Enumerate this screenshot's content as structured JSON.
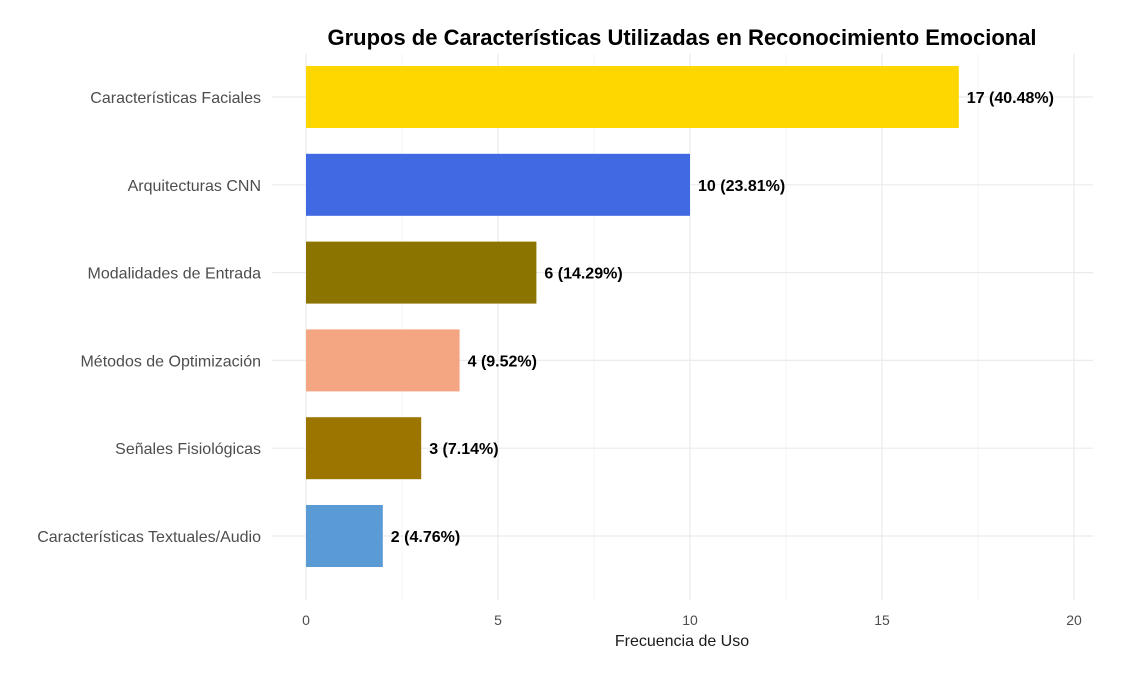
{
  "chart_data": {
    "type": "bar",
    "orientation": "horizontal",
    "title": "Grupos de Características Utilizadas en Reconocimiento Emocional",
    "xlabel": "Frecuencia de Uso",
    "ylabel": "",
    "xlim": [
      0,
      20
    ],
    "x_ticks": [
      0,
      5,
      10,
      15,
      20
    ],
    "grid": true,
    "categories": [
      "Características Faciales",
      "Arquitecturas CNN",
      "Modalidades de Entrada",
      "Métodos de Optimización",
      "Señales Fisiológicas",
      "Características Textuales/Audio"
    ],
    "values": [
      17,
      10,
      6,
      4,
      3,
      2
    ],
    "data_labels": [
      "17 (40.48%)",
      "10 (23.81%)",
      "6 (14.29%)",
      "4 (9.52%)",
      "3 (7.14%)",
      "2 (4.76%)"
    ],
    "colors": [
      "#FFD700",
      "#4169E1",
      "#8B7500",
      "#F4A582",
      "#9C7500",
      "#5B9BD5"
    ]
  }
}
